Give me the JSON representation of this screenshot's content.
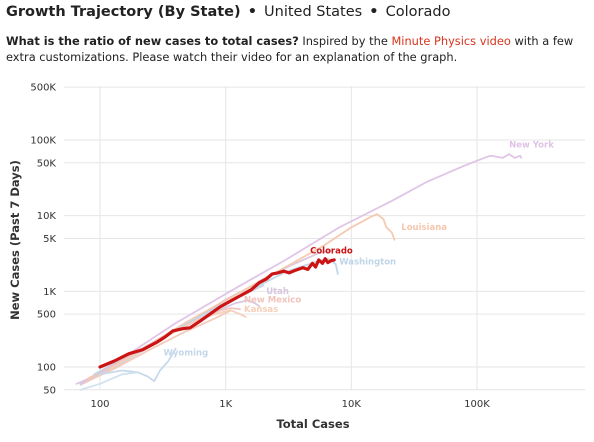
{
  "header": {
    "title_main": "Growth Trajectory (By State)",
    "separator": "•",
    "crumb_country": "United States",
    "crumb_state": "Colorado",
    "question": "What is the ratio of new cases to total cases?",
    "intro_text": " Inspired by the ",
    "link_text": "Minute Physics video",
    "outro_text": " with a few extra customizations. Please watch their video for an explanation of the graph."
  },
  "colors": {
    "highlight": "#cc1414",
    "grid": "#e6e6e6",
    "link": "#d6351f"
  },
  "chart_data": {
    "type": "line",
    "x_scale": "log",
    "y_scale": "log",
    "xlabel": "Total Cases",
    "ylabel": "New Cases (Past 7 Days)",
    "xlim": [
      60,
      300000
    ],
    "ylim": [
      40,
      500000
    ],
    "grid": true,
    "legend": "none",
    "x_ticks": [
      {
        "value": 100,
        "label": "100"
      },
      {
        "value": 1000,
        "label": "1K"
      },
      {
        "value": 10000,
        "label": "10K"
      },
      {
        "value": 100000,
        "label": "100K"
      }
    ],
    "y_ticks": [
      {
        "value": 50,
        "label": "50"
      },
      {
        "value": 100,
        "label": "100"
      },
      {
        "value": 500,
        "label": "500"
      },
      {
        "value": 1000,
        "label": "1K"
      },
      {
        "value": 5000,
        "label": "5K"
      },
      {
        "value": 10000,
        "label": "10K"
      },
      {
        "value": 50000,
        "label": "50K"
      },
      {
        "value": 100000,
        "label": "100K"
      },
      {
        "value": 500000,
        "label": "500K"
      }
    ],
    "series": [
      {
        "name": "",
        "color": "#d9c6dd",
        "highlight": false,
        "points": [
          [
            65,
            60
          ],
          [
            90,
            75
          ],
          [
            150,
            120
          ],
          [
            300,
            230
          ],
          [
            600,
            450
          ],
          [
            1000,
            780
          ],
          [
            1500,
            1100
          ],
          [
            2200,
            1600
          ],
          [
            3500,
            2300
          ],
          [
            5500,
            3200
          ],
          [
            7000,
            3500
          ]
        ]
      },
      {
        "name": "",
        "color": "#cfd3df",
        "highlight": false,
        "points": [
          [
            70,
            58
          ],
          [
            110,
            85
          ],
          [
            200,
            150
          ],
          [
            400,
            300
          ],
          [
            800,
            600
          ],
          [
            1400,
            900
          ],
          [
            2000,
            1200
          ]
        ]
      },
      {
        "name": "",
        "color": "#f1c9b7",
        "highlight": false,
        "points": [
          [
            75,
            62
          ],
          [
            130,
            95
          ],
          [
            250,
            170
          ],
          [
            450,
            280
          ],
          [
            800,
            430
          ],
          [
            1100,
            560
          ]
        ]
      },
      {
        "name": "New York",
        "color": "#dfc2e6",
        "highlight": false,
        "points": [
          [
            70,
            60
          ],
          [
            150,
            130
          ],
          [
            400,
            380
          ],
          [
            1200,
            1100
          ],
          [
            3000,
            2600
          ],
          [
            8000,
            7000
          ],
          [
            20000,
            15000
          ],
          [
            40000,
            28000
          ],
          [
            80000,
            46000
          ],
          [
            120000,
            60000
          ],
          [
            130000,
            62000
          ],
          [
            160000,
            58000
          ],
          [
            180000,
            65000
          ],
          [
            200000,
            58000
          ],
          [
            220000,
            62000
          ],
          [
            225000,
            58000
          ]
        ],
        "label_at": [
          180000,
          80000
        ]
      },
      {
        "name": "Louisiana",
        "color": "#f6c7ad",
        "highlight": false,
        "points": [
          [
            80,
            70
          ],
          [
            200,
            160
          ],
          [
            500,
            400
          ],
          [
            1200,
            900
          ],
          [
            3000,
            2100
          ],
          [
            6000,
            4000
          ],
          [
            10000,
            7000
          ],
          [
            14000,
            9500
          ],
          [
            16000,
            10500
          ],
          [
            18000,
            9000
          ],
          [
            19000,
            7000
          ],
          [
            21000,
            6000
          ],
          [
            22000,
            4800
          ]
        ],
        "label_at": [
          25000,
          6500
        ]
      },
      {
        "name": "Washington",
        "color": "#bfd5e8",
        "highlight": false,
        "points": [
          [
            90,
            80
          ],
          [
            250,
            200
          ],
          [
            600,
            450
          ],
          [
            1500,
            1000
          ],
          [
            3000,
            1800
          ],
          [
            5000,
            2400
          ],
          [
            6500,
            2700
          ],
          [
            7500,
            2300
          ],
          [
            7700,
            1900
          ],
          [
            7800,
            1700
          ]
        ],
        "label_at": [
          8000,
          2250
        ]
      },
      {
        "name": "Utah",
        "color": "#d6c6de",
        "highlight": false,
        "points": [
          [
            100,
            85
          ],
          [
            300,
            230
          ],
          [
            700,
            480
          ],
          [
            1200,
            700
          ],
          [
            1500,
            760
          ],
          [
            1700,
            700
          ],
          [
            1850,
            640
          ]
        ],
        "label_at": [
          2100,
          920
        ]
      },
      {
        "name": "New Mexico",
        "color": "#f2c2bc",
        "highlight": false,
        "points": [
          [
            110,
            90
          ],
          [
            300,
            240
          ],
          [
            600,
            420
          ],
          [
            900,
            560
          ],
          [
            1100,
            600
          ],
          [
            1300,
            580
          ]
        ],
        "label_at": [
          1400,
          710
        ]
      },
      {
        "name": "Kansas",
        "color": "#f5cfb8",
        "highlight": false,
        "points": [
          [
            120,
            95
          ],
          [
            300,
            230
          ],
          [
            600,
            420
          ],
          [
            900,
            520
          ],
          [
            1100,
            560
          ],
          [
            1300,
            500
          ],
          [
            1450,
            460
          ]
        ],
        "label_at": [
          1400,
          530
        ]
      },
      {
        "name": "Wyoming",
        "color": "#c4d7ea",
        "highlight": false,
        "points": [
          [
            100,
            80
          ],
          [
            150,
            90
          ],
          [
            200,
            85
          ],
          [
            240,
            75
          ],
          [
            270,
            65
          ],
          [
            300,
            90
          ],
          [
            350,
            120
          ],
          [
            400,
            175
          ]
        ],
        "label_at": [
          320,
          142
        ]
      },
      {
        "name": "",
        "color": "#cfe0ee",
        "highlight": false,
        "points": [
          [
            70,
            50
          ],
          [
            100,
            60
          ],
          [
            150,
            80
          ],
          [
            200,
            85
          ]
        ]
      },
      {
        "name": "Colorado",
        "color": "#cc1414",
        "highlight": true,
        "points": [
          [
            100,
            100
          ],
          [
            130,
            120
          ],
          [
            170,
            150
          ],
          [
            220,
            170
          ],
          [
            280,
            210
          ],
          [
            330,
            250
          ],
          [
            380,
            300
          ],
          [
            450,
            320
          ],
          [
            520,
            330
          ],
          [
            620,
            400
          ],
          [
            750,
            500
          ],
          [
            900,
            620
          ],
          [
            1100,
            750
          ],
          [
            1300,
            870
          ],
          [
            1600,
            1050
          ],
          [
            1850,
            1300
          ],
          [
            2100,
            1450
          ],
          [
            2350,
            1700
          ],
          [
            2600,
            1750
          ],
          [
            2900,
            1850
          ],
          [
            3200,
            1750
          ],
          [
            3600,
            1900
          ],
          [
            4100,
            2050
          ],
          [
            4500,
            1950
          ],
          [
            4900,
            2350
          ],
          [
            5200,
            2100
          ],
          [
            5500,
            2600
          ],
          [
            5900,
            2350
          ],
          [
            6200,
            2700
          ],
          [
            6500,
            2400
          ],
          [
            6900,
            2550
          ],
          [
            7300,
            2600
          ]
        ],
        "label_at": [
          4700,
          3150
        ]
      }
    ]
  }
}
